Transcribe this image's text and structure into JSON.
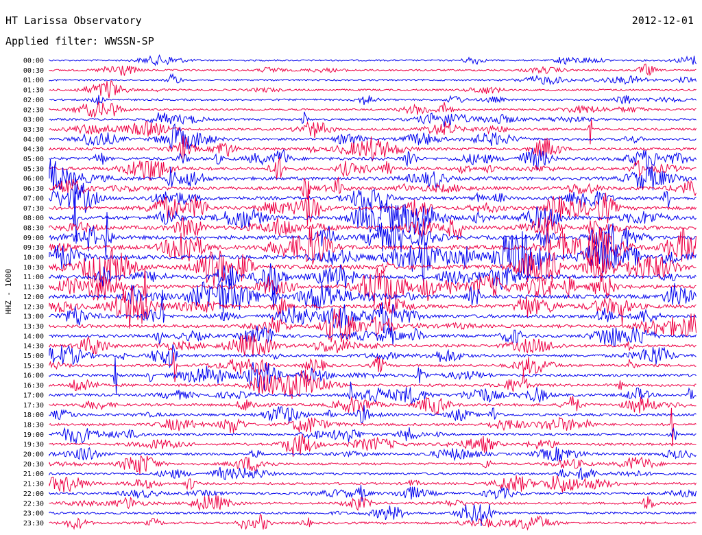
{
  "header": {
    "title": "HT Larissa Observatory",
    "filter": "Applied filter: WWSSN-SP",
    "date": "2012-12-01"
  },
  "chart_data": {
    "type": "line",
    "ylabel": "HHZ - 1000",
    "colors": [
      "#0000ee",
      "#ee0044"
    ],
    "rows": [
      {
        "label": "00:00",
        "activity": 0.15
      },
      {
        "label": "00:30",
        "activity": 0.2
      },
      {
        "label": "01:00",
        "activity": 0.2
      },
      {
        "label": "01:30",
        "activity": 0.2
      },
      {
        "label": "02:00",
        "activity": 0.25
      },
      {
        "label": "02:30",
        "activity": 0.25
      },
      {
        "label": "03:00",
        "activity": 0.3
      },
      {
        "label": "03:30",
        "activity": 0.35
      },
      {
        "label": "04:00",
        "activity": 0.4
      },
      {
        "label": "04:30",
        "activity": 0.5
      },
      {
        "label": "05:00",
        "activity": 0.6
      },
      {
        "label": "05:30",
        "activity": 0.65
      },
      {
        "label": "06:00",
        "activity": 0.7
      },
      {
        "label": "06:30",
        "activity": 0.7
      },
      {
        "label": "07:00",
        "activity": 0.7
      },
      {
        "label": "07:30",
        "activity": 0.75
      },
      {
        "label": "08:00",
        "activity": 0.8
      },
      {
        "label": "08:30",
        "activity": 0.85
      },
      {
        "label": "09:00",
        "activity": 0.85
      },
      {
        "label": "09:30",
        "activity": 0.95
      },
      {
        "label": "10:00",
        "activity": 1.0
      },
      {
        "label": "10:30",
        "activity": 1.0
      },
      {
        "label": "11:00",
        "activity": 0.9
      },
      {
        "label": "11:30",
        "activity": 0.85
      },
      {
        "label": "12:00",
        "activity": 0.85
      },
      {
        "label": "12:30",
        "activity": 0.8
      },
      {
        "label": "13:00",
        "activity": 0.75
      },
      {
        "label": "13:30",
        "activity": 0.65
      },
      {
        "label": "14:00",
        "activity": 0.6
      },
      {
        "label": "14:30",
        "activity": 0.5
      },
      {
        "label": "15:00",
        "activity": 0.5
      },
      {
        "label": "15:30",
        "activity": 0.45
      },
      {
        "label": "16:00",
        "activity": 0.5
      },
      {
        "label": "16:30",
        "activity": 0.5
      },
      {
        "label": "17:00",
        "activity": 0.5
      },
      {
        "label": "17:30",
        "activity": 0.45
      },
      {
        "label": "18:00",
        "activity": 0.45
      },
      {
        "label": "18:30",
        "activity": 0.4
      },
      {
        "label": "19:00",
        "activity": 0.4
      },
      {
        "label": "19:30",
        "activity": 0.4
      },
      {
        "label": "20:00",
        "activity": 0.4
      },
      {
        "label": "20:30",
        "activity": 0.35
      },
      {
        "label": "21:00",
        "activity": 0.35
      },
      {
        "label": "21:30",
        "activity": 0.35
      },
      {
        "label": "22:00",
        "activity": 0.4
      },
      {
        "label": "22:30",
        "activity": 0.35
      },
      {
        "label": "23:00",
        "activity": 0.35
      },
      {
        "label": "23:30",
        "activity": 0.35
      }
    ]
  }
}
